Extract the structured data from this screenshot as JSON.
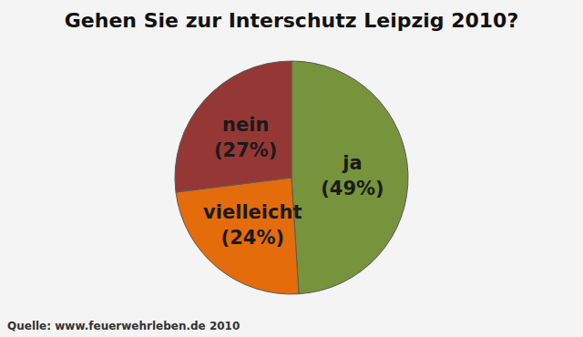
{
  "chart_data": {
    "type": "pie",
    "title": "Gehen Sie zur Interschutz Leipzig 2010?",
    "categories": [
      "ja",
      "vielleicht",
      "nein"
    ],
    "values": [
      49,
      24,
      27
    ],
    "value_labels": [
      "(49%)",
      "(24%)",
      "(27%)"
    ],
    "colors": [
      "#77933c",
      "#e46c0a",
      "#953735"
    ],
    "data_labels": true,
    "source": "Quelle: www.feuerwehrleben.de 2010"
  }
}
